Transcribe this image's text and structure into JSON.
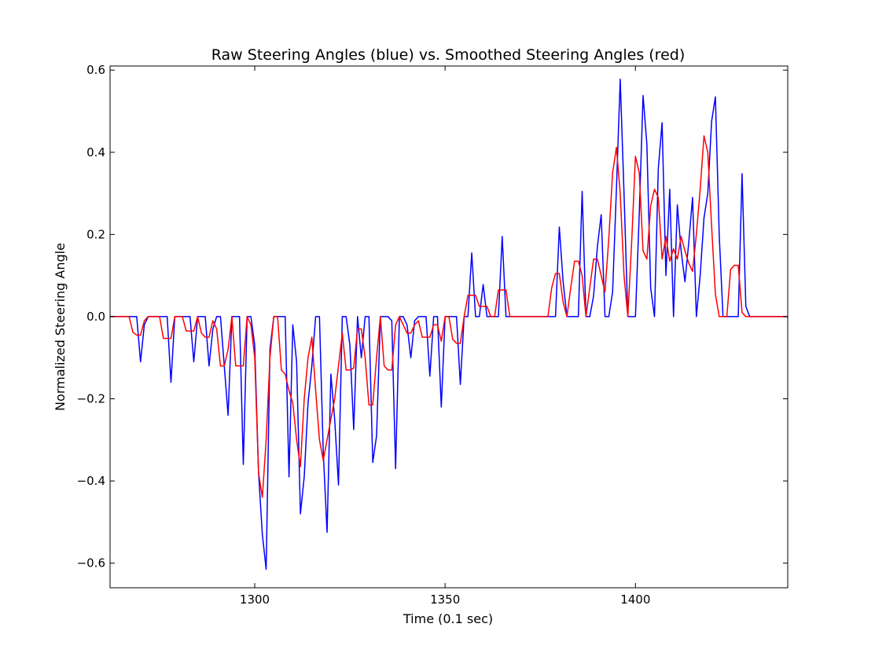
{
  "chart_data": {
    "type": "line",
    "title": "Raw Steering Angles (blue) vs. Smoothed Steering Angles (red)",
    "xlabel": "Time (0.1 sec)",
    "ylabel": "Normalized Steering Angle",
    "xlim": [
      1262,
      1440
    ],
    "ylim": [
      -0.66,
      0.61
    ],
    "xticks": [
      1300,
      1350,
      1400
    ],
    "xtick_labels": [
      "1300",
      "1350",
      "1400"
    ],
    "yticks": [
      -0.6,
      -0.4,
      -0.2,
      0.0,
      0.2,
      0.4,
      0.6
    ],
    "ytick_labels": [
      "−0.6",
      "−0.4",
      "−0.2",
      "0.0",
      "0.2",
      "0.4",
      "0.6"
    ],
    "grid": false,
    "series": [
      {
        "name": "raw",
        "color": "#0000ff",
        "points": [
          [
            1262,
            0
          ],
          [
            1269,
            0
          ],
          [
            1270,
            -0.11
          ],
          [
            1271,
            -0.02
          ],
          [
            1272,
            0
          ],
          [
            1277,
            0
          ],
          [
            1278,
            -0.16
          ],
          [
            1279,
            0
          ],
          [
            1282,
            0
          ],
          [
            1283,
            0
          ],
          [
            1284,
            -0.11
          ],
          [
            1285,
            0
          ],
          [
            1287,
            0
          ],
          [
            1288,
            -0.12
          ],
          [
            1289,
            -0.03
          ],
          [
            1290,
            0
          ],
          [
            1291,
            0
          ],
          [
            1292,
            -0.12
          ],
          [
            1293,
            -0.24
          ],
          [
            1294,
            0
          ],
          [
            1296,
            0
          ],
          [
            1297,
            -0.36
          ],
          [
            1298,
            0
          ],
          [
            1299,
            0
          ],
          [
            1300,
            -0.07
          ],
          [
            1301,
            -0.38
          ],
          [
            1302,
            -0.53
          ],
          [
            1303,
            -0.615
          ],
          [
            1304,
            -0.08
          ],
          [
            1305,
            0
          ],
          [
            1308,
            0
          ],
          [
            1309,
            -0.39
          ],
          [
            1310,
            -0.02
          ],
          [
            1311,
            -0.11
          ],
          [
            1312,
            -0.48
          ],
          [
            1313,
            -0.39
          ],
          [
            1314,
            -0.21
          ],
          [
            1315,
            -0.12
          ],
          [
            1316,
            0
          ],
          [
            1317,
            0
          ],
          [
            1318,
            -0.33
          ],
          [
            1319,
            -0.525
          ],
          [
            1320,
            -0.14
          ],
          [
            1321,
            -0.25
          ],
          [
            1322,
            -0.41
          ],
          [
            1323,
            0
          ],
          [
            1324,
            0
          ],
          [
            1325,
            -0.07
          ],
          [
            1326,
            -0.275
          ],
          [
            1327,
            0
          ],
          [
            1328,
            -0.1
          ],
          [
            1329,
            0
          ],
          [
            1330,
            0
          ],
          [
            1331,
            -0.355
          ],
          [
            1332,
            -0.29
          ],
          [
            1333,
            0
          ],
          [
            1334,
            0
          ],
          [
            1335,
            0
          ],
          [
            1336,
            -0.01
          ],
          [
            1337,
            -0.37
          ],
          [
            1338,
            0
          ],
          [
            1339,
            0
          ],
          [
            1340,
            -0.02
          ],
          [
            1341,
            -0.1
          ],
          [
            1342,
            -0.01
          ],
          [
            1343,
            0
          ],
          [
            1345,
            0
          ],
          [
            1346,
            -0.145
          ],
          [
            1347,
            0
          ],
          [
            1348,
            0
          ],
          [
            1349,
            -0.22
          ],
          [
            1350,
            0
          ],
          [
            1352,
            0
          ],
          [
            1353,
            0
          ],
          [
            1354,
            -0.165
          ],
          [
            1355,
            0
          ],
          [
            1356,
            0
          ],
          [
            1357,
            0.155
          ],
          [
            1358,
            0
          ],
          [
            1359,
            0
          ],
          [
            1360,
            0.078
          ],
          [
            1361,
            0
          ],
          [
            1363,
            0
          ],
          [
            1364,
            0
          ],
          [
            1365,
            0.195
          ],
          [
            1366,
            0
          ],
          [
            1379,
            0
          ],
          [
            1380,
            0.218
          ],
          [
            1381,
            0.085
          ],
          [
            1382,
            0
          ],
          [
            1384,
            0
          ],
          [
            1385,
            0
          ],
          [
            1386,
            0.305
          ],
          [
            1387,
            0
          ],
          [
            1388,
            0
          ],
          [
            1389,
            0.05
          ],
          [
            1390,
            0.17
          ],
          [
            1391,
            0.248
          ],
          [
            1392,
            0
          ],
          [
            1393,
            0
          ],
          [
            1394,
            0.06
          ],
          [
            1395,
            0.31
          ],
          [
            1396,
            0.578
          ],
          [
            1397,
            0.3
          ],
          [
            1398,
            0
          ],
          [
            1400,
            0
          ],
          [
            1401,
            0.25
          ],
          [
            1402,
            0.538
          ],
          [
            1403,
            0.42
          ],
          [
            1404,
            0.07
          ],
          [
            1405,
            0
          ],
          [
            1406,
            0.36
          ],
          [
            1407,
            0.472
          ],
          [
            1408,
            0.1
          ],
          [
            1409,
            0.31
          ],
          [
            1410,
            0
          ],
          [
            1411,
            0.272
          ],
          [
            1412,
            0.16
          ],
          [
            1413,
            0.085
          ],
          [
            1414,
            0.18
          ],
          [
            1415,
            0.29
          ],
          [
            1416,
            0
          ],
          [
            1417,
            0.1
          ],
          [
            1418,
            0.24
          ],
          [
            1419,
            0.3
          ],
          [
            1420,
            0.475
          ],
          [
            1421,
            0.535
          ],
          [
            1422,
            0.2
          ],
          [
            1423,
            0
          ],
          [
            1424,
            0
          ],
          [
            1427,
            0
          ],
          [
            1428,
            0.348
          ],
          [
            1429,
            0.025
          ],
          [
            1430,
            0
          ],
          [
            1440,
            0
          ]
        ]
      },
      {
        "name": "smoothed",
        "color": "#ff0000",
        "points": [
          [
            1262,
            0
          ],
          [
            1267,
            0
          ],
          [
            1268,
            -0.038
          ],
          [
            1269,
            -0.045
          ],
          [
            1270,
            -0.045
          ],
          [
            1271,
            -0.01
          ],
          [
            1272,
            0
          ],
          [
            1275,
            0
          ],
          [
            1276,
            -0.053
          ],
          [
            1277,
            -0.053
          ],
          [
            1278,
            -0.053
          ],
          [
            1279,
            0
          ],
          [
            1280,
            0
          ],
          [
            1281,
            0
          ],
          [
            1282,
            -0.035
          ],
          [
            1283,
            -0.035
          ],
          [
            1284,
            -0.035
          ],
          [
            1285,
            0
          ],
          [
            1286,
            -0.04
          ],
          [
            1287,
            -0.05
          ],
          [
            1288,
            -0.05
          ],
          [
            1289,
            -0.01
          ],
          [
            1290,
            -0.03
          ],
          [
            1291,
            -0.12
          ],
          [
            1292,
            -0.12
          ],
          [
            1293,
            -0.08
          ],
          [
            1294,
            0
          ],
          [
            1295,
            -0.12
          ],
          [
            1296,
            -0.12
          ],
          [
            1297,
            -0.12
          ],
          [
            1298,
            0
          ],
          [
            1299,
            -0.02
          ],
          [
            1300,
            -0.1
          ],
          [
            1301,
            -0.38
          ],
          [
            1302,
            -0.44
          ],
          [
            1303,
            -0.3
          ],
          [
            1304,
            -0.1
          ],
          [
            1305,
            0
          ],
          [
            1306,
            0
          ],
          [
            1307,
            -0.13
          ],
          [
            1308,
            -0.14
          ],
          [
            1309,
            -0.18
          ],
          [
            1310,
            -0.21
          ],
          [
            1311,
            -0.3
          ],
          [
            1312,
            -0.365
          ],
          [
            1313,
            -0.2
          ],
          [
            1314,
            -0.1
          ],
          [
            1315,
            -0.05
          ],
          [
            1316,
            -0.18
          ],
          [
            1317,
            -0.3
          ],
          [
            1318,
            -0.35
          ],
          [
            1319,
            -0.3
          ],
          [
            1320,
            -0.25
          ],
          [
            1321,
            -0.2
          ],
          [
            1322,
            -0.12
          ],
          [
            1323,
            -0.04
          ],
          [
            1324,
            -0.13
          ],
          [
            1325,
            -0.13
          ],
          [
            1326,
            -0.125
          ],
          [
            1327,
            -0.03
          ],
          [
            1328,
            -0.03
          ],
          [
            1329,
            -0.1
          ],
          [
            1330,
            -0.215
          ],
          [
            1331,
            -0.215
          ],
          [
            1332,
            -0.1
          ],
          [
            1333,
            0
          ],
          [
            1334,
            -0.12
          ],
          [
            1335,
            -0.13
          ],
          [
            1336,
            -0.13
          ],
          [
            1337,
            -0.02
          ],
          [
            1338,
            0
          ],
          [
            1339,
            -0.02
          ],
          [
            1340,
            -0.04
          ],
          [
            1341,
            -0.04
          ],
          [
            1342,
            -0.02
          ],
          [
            1343,
            -0.01
          ],
          [
            1344,
            -0.05
          ],
          [
            1345,
            -0.05
          ],
          [
            1346,
            -0.05
          ],
          [
            1347,
            -0.02
          ],
          [
            1348,
            -0.02
          ],
          [
            1349,
            -0.06
          ],
          [
            1350,
            0
          ],
          [
            1351,
            0
          ],
          [
            1352,
            -0.055
          ],
          [
            1353,
            -0.065
          ],
          [
            1354,
            -0.065
          ],
          [
            1355,
            0
          ],
          [
            1356,
            0.052
          ],
          [
            1357,
            0.052
          ],
          [
            1358,
            0.052
          ],
          [
            1359,
            0.025
          ],
          [
            1360,
            0.025
          ],
          [
            1361,
            0.025
          ],
          [
            1362,
            0
          ],
          [
            1363,
            0
          ],
          [
            1364,
            0.065
          ],
          [
            1365,
            0.065
          ],
          [
            1366,
            0.065
          ],
          [
            1367,
            0
          ],
          [
            1377,
            0
          ],
          [
            1378,
            0.07
          ],
          [
            1379,
            0.105
          ],
          [
            1380,
            0.105
          ],
          [
            1381,
            0.035
          ],
          [
            1382,
            0
          ],
          [
            1383,
            0.07
          ],
          [
            1384,
            0.135
          ],
          [
            1385,
            0.135
          ],
          [
            1386,
            0.1
          ],
          [
            1387,
            0
          ],
          [
            1388,
            0.07
          ],
          [
            1389,
            0.14
          ],
          [
            1390,
            0.14
          ],
          [
            1391,
            0.1
          ],
          [
            1392,
            0.06
          ],
          [
            1393,
            0.19
          ],
          [
            1394,
            0.35
          ],
          [
            1395,
            0.412
          ],
          [
            1396,
            0.3
          ],
          [
            1397,
            0.1
          ],
          [
            1398,
            0
          ],
          [
            1399,
            0.18
          ],
          [
            1400,
            0.39
          ],
          [
            1401,
            0.35
          ],
          [
            1402,
            0.16
          ],
          [
            1403,
            0.14
          ],
          [
            1404,
            0.27
          ],
          [
            1405,
            0.31
          ],
          [
            1406,
            0.29
          ],
          [
            1407,
            0.14
          ],
          [
            1408,
            0.195
          ],
          [
            1409,
            0.135
          ],
          [
            1410,
            0.165
          ],
          [
            1411,
            0.14
          ],
          [
            1412,
            0.195
          ],
          [
            1413,
            0.16
          ],
          [
            1414,
            0.13
          ],
          [
            1415,
            0.11
          ],
          [
            1416,
            0.2
          ],
          [
            1417,
            0.31
          ],
          [
            1418,
            0.44
          ],
          [
            1419,
            0.4
          ],
          [
            1420,
            0.22
          ],
          [
            1421,
            0.055
          ],
          [
            1422,
            0
          ],
          [
            1423,
            0
          ],
          [
            1424,
            0
          ],
          [
            1425,
            0.115
          ],
          [
            1426,
            0.125
          ],
          [
            1427,
            0.125
          ],
          [
            1428,
            0.01
          ],
          [
            1429,
            0
          ],
          [
            1440,
            0
          ]
        ]
      }
    ]
  }
}
